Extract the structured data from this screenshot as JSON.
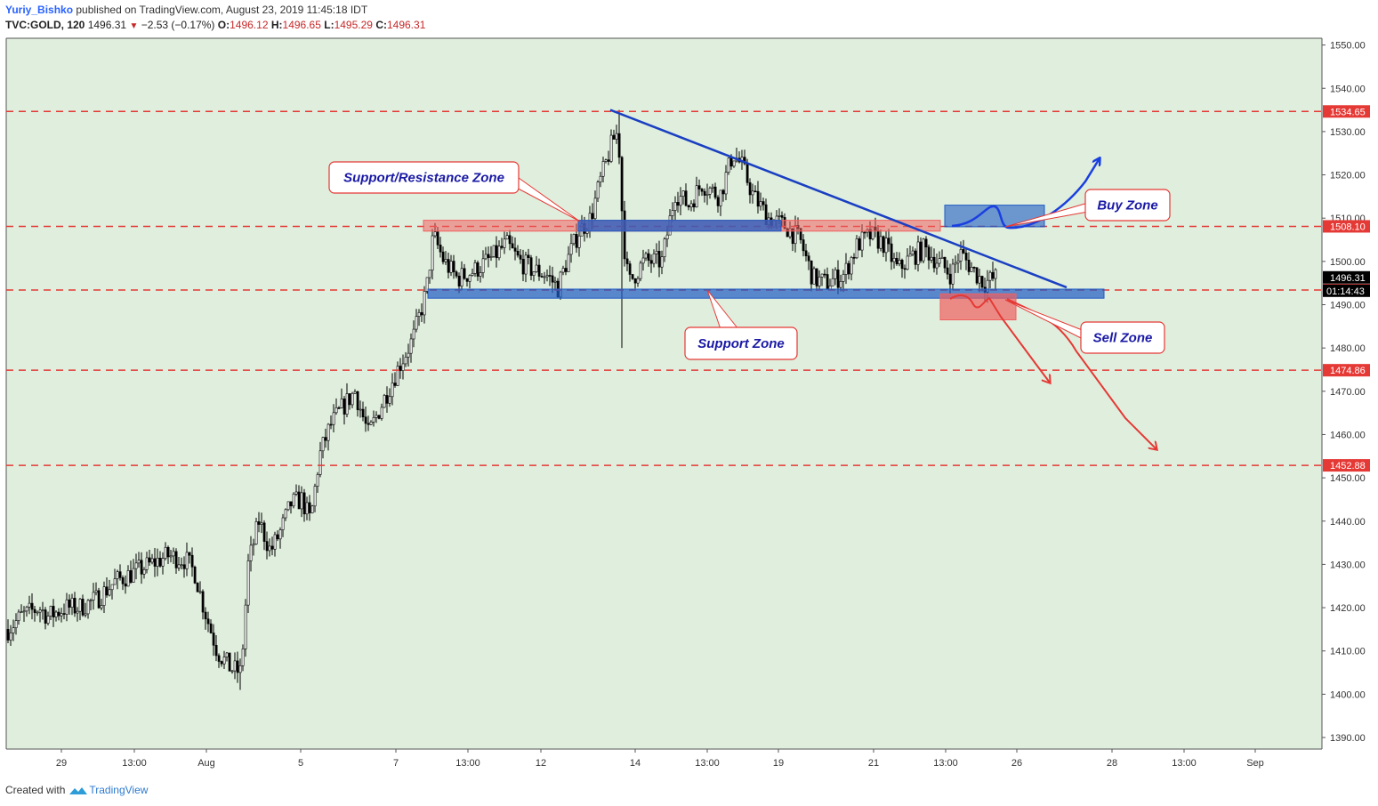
{
  "header": {
    "author": "Yuriy_Bishko",
    "published": "published on TradingView.com, August 23, 2019 11:45:18 IDT",
    "symbol": "TVC:GOLD, 120",
    "last": "1496.31",
    "change": "−2.53 (−0.17%)",
    "o_label": "O:",
    "o_val": "1496.12",
    "h_label": "H:",
    "h_val": "1496.65",
    "l_label": "L:",
    "l_val": "1495.29",
    "c_label": "C:",
    "c_val": "1496.31"
  },
  "footer": {
    "created": "Created with",
    "brand": "TradingView"
  },
  "colors": {
    "background": "#dfeedd",
    "candle": "#000000",
    "level_line": "#e53935",
    "trendline": "#1a3fc2",
    "zone_blue": "#1f5bc4",
    "zone_red": "#f06060",
    "label_text": "#1a1aa6",
    "label_border": "#e53935"
  },
  "chart_data": {
    "type": "candlestick",
    "symbol": "TVC:GOLD",
    "timeframe": "120",
    "ylim": [
      1385,
      1552
    ],
    "y_ticks": [
      1390,
      1400,
      1410,
      1420,
      1430,
      1440,
      1450,
      1460,
      1470,
      1480,
      1490,
      1500,
      1510,
      1520,
      1530,
      1540,
      1550
    ],
    "y_tick_labels": [
      "1390.00",
      "1400.00",
      "1410.00",
      "1420.00",
      "1430.00",
      "1440.00",
      "1450.00",
      "1460.00",
      "1470.00",
      "1480.00",
      "1490.00",
      "1500.00",
      "1510.00",
      "1520.00",
      "1530.00",
      "1540.00",
      "1550.00"
    ],
    "x_tick_labels": [
      "29",
      "13:00",
      "Aug",
      "5",
      "7",
      "13:00",
      "12",
      "14",
      "13:00",
      "19",
      "21",
      "13:00",
      "26",
      "28",
      "13:00",
      "Sep"
    ],
    "price_levels": [
      {
        "value": 1534.65,
        "label": "1534.65"
      },
      {
        "value": 1508.1,
        "label": "1508.10"
      },
      {
        "value": 1493.38,
        "label": "1493.38"
      },
      {
        "value": 1474.86,
        "label": "1474.86"
      },
      {
        "value": 1452.88,
        "label": "1452.88"
      }
    ],
    "last_price": {
      "value": 1496.31,
      "label": "1496.31",
      "countdown": "01:14:43"
    },
    "price_path": [
      [
        0,
        1415
      ],
      [
        15,
        1418
      ],
      [
        35,
        1420
      ],
      [
        45,
        1418
      ],
      [
        65,
        1420
      ],
      [
        80,
        1420
      ],
      [
        100,
        1422
      ],
      [
        120,
        1426
      ],
      [
        140,
        1428
      ],
      [
        160,
        1430
      ],
      [
        180,
        1432
      ],
      [
        200,
        1431
      ],
      [
        210,
        1428
      ],
      [
        220,
        1420
      ],
      [
        235,
        1410
      ],
      [
        250,
        1406
      ],
      [
        262,
        1405
      ],
      [
        270,
        1430
      ],
      [
        282,
        1440
      ],
      [
        295,
        1433
      ],
      [
        305,
        1437
      ],
      [
        318,
        1444
      ],
      [
        330,
        1445
      ],
      [
        340,
        1440
      ],
      [
        350,
        1455
      ],
      [
        362,
        1462
      ],
      [
        375,
        1466
      ],
      [
        390,
        1470
      ],
      [
        405,
        1460
      ],
      [
        420,
        1467
      ],
      [
        440,
        1476
      ],
      [
        455,
        1482
      ],
      [
        470,
        1493
      ],
      [
        478,
        1506
      ],
      [
        490,
        1500
      ],
      [
        505,
        1496
      ],
      [
        525,
        1498
      ],
      [
        545,
        1501
      ],
      [
        560,
        1504
      ],
      [
        575,
        1500
      ],
      [
        590,
        1498
      ],
      [
        605,
        1497
      ],
      [
        618,
        1494
      ],
      [
        628,
        1500
      ],
      [
        642,
        1507
      ],
      [
        655,
        1510
      ],
      [
        665,
        1518
      ],
      [
        680,
        1528
      ],
      [
        686,
        1530
      ],
      [
        690,
        1512
      ],
      [
        694,
        1500
      ],
      [
        698,
        1495
      ],
      [
        715,
        1500
      ],
      [
        735,
        1500
      ],
      [
        750,
        1516
      ],
      [
        765,
        1513
      ],
      [
        780,
        1518
      ],
      [
        800,
        1515
      ],
      [
        815,
        1525
      ],
      [
        825,
        1522
      ],
      [
        838,
        1515
      ],
      [
        855,
        1510
      ],
      [
        875,
        1508
      ],
      [
        890,
        1505
      ],
      [
        905,
        1496
      ],
      [
        920,
        1495
      ],
      [
        940,
        1497
      ],
      [
        955,
        1504
      ],
      [
        970,
        1506
      ],
      [
        985,
        1504
      ],
      [
        1000,
        1498
      ],
      [
        1015,
        1501
      ],
      [
        1030,
        1503
      ],
      [
        1045,
        1500
      ],
      [
        1060,
        1497
      ],
      [
        1070,
        1502
      ],
      [
        1085,
        1498
      ],
      [
        1097,
        1495
      ],
      [
        1110,
        1496.3
      ]
    ],
    "trendline": {
      "from": {
        "x": "Aug 13",
        "y": 1535
      },
      "to": {
        "x": "Aug 27",
        "y": 1494
      }
    },
    "zones": [
      {
        "name": "Support/Resistance Zone",
        "color": "red",
        "from": "Aug 8",
        "to": "Aug 23",
        "y": [
          1507,
          1509.5
        ]
      },
      {
        "name": "Support/Resistance Zone core",
        "color": "blue",
        "from": "Aug 12",
        "to": "Aug 19",
        "y": [
          1507,
          1509.5
        ]
      },
      {
        "name": "Support Zone",
        "color": "blue",
        "from": "Aug 8",
        "to": "Aug 27",
        "y": [
          1491.5,
          1493.6
        ]
      },
      {
        "name": "Buy Zone",
        "color": "blue",
        "y": [
          1508,
          1513
        ]
      },
      {
        "name": "Sell Zone",
        "color": "red",
        "y": [
          1486.5,
          1492.5
        ]
      }
    ],
    "annotations": [
      "Support/Resistance Zone",
      "Support Zone",
      "Buy Zone",
      "Sell Zone"
    ],
    "grid": false,
    "legend": "none"
  }
}
